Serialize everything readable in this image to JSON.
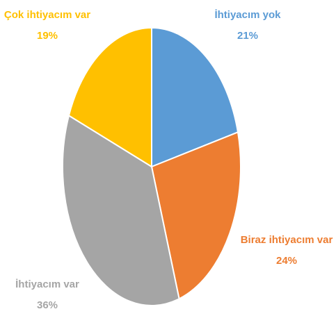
{
  "chart_data": {
    "type": "pie",
    "categories": [
      "İhtiyacım yok",
      "Biraz ihtiyacım var",
      "İhtiyacım var",
      "Çok ihtiyacım var"
    ],
    "values": [
      21,
      24,
      36,
      19
    ],
    "value_labels": [
      "21%",
      "24%",
      "36%",
      "19%"
    ],
    "colors": [
      "#5B9BD5",
      "#ED7D31",
      "#A5A5A5",
      "#FFC000"
    ]
  }
}
